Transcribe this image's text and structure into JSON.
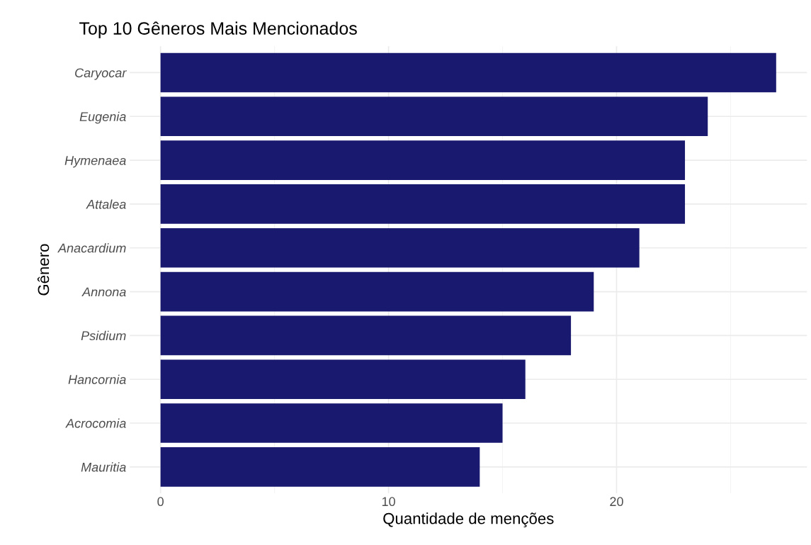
{
  "chart_data": {
    "type": "bar",
    "orientation": "horizontal",
    "title": "Top 10 Gêneros Mais Mencionados",
    "xlabel": "Quantidade de menções",
    "ylabel": "Gênero",
    "categories": [
      "Caryocar",
      "Eugenia",
      "Hymenaea",
      "Attalea",
      "Anacardium",
      "Annona",
      "Psidium",
      "Hancornia",
      "Acrocomia",
      "Mauritia"
    ],
    "values": [
      27,
      24,
      23,
      23,
      21,
      19,
      18,
      16,
      15,
      14
    ],
    "color": "#191970",
    "xlim": [
      -1.35,
      28.35
    ],
    "xticks": [
      0,
      {
        "value": 5,
        "label": null
      },
      10,
      {
        "value": 15,
        "label": null
      },
      20,
      {
        "value": 25,
        "label": null
      }
    ],
    "grid": true
  }
}
